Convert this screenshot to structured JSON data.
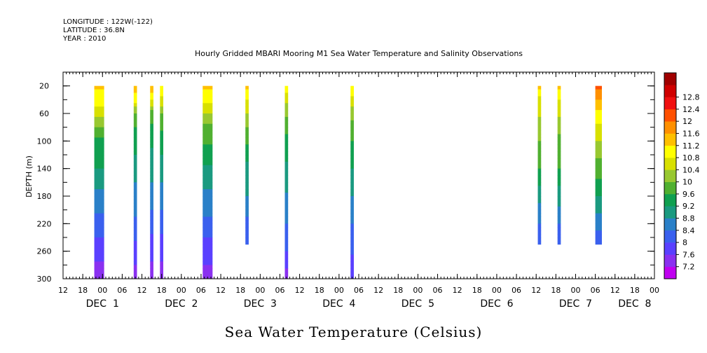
{
  "meta": {
    "longitude": "LONGITUDE : 122W(-122)",
    "latitude": "LATITUDE : 36.8N",
    "year": "YEAR : 2010"
  },
  "chart_data": {
    "type": "heatmap",
    "title": "Hourly Gridded MBARI Mooring M1 Sea Water Temperature and Salinity Observations",
    "bottom_title": "Sea Water Temperature (Celsius)",
    "ylabel": "DEPTH (m)",
    "xlabel": "",
    "x_units": "hours since Nov 30 12:00 (2010)",
    "xlim": [
      0,
      180
    ],
    "ylim": [
      300,
      0
    ],
    "y_ticks": [
      20,
      60,
      100,
      140,
      180,
      220,
      260,
      300
    ],
    "x_hour_ticks": [
      {
        "h": 0,
        "label": "12"
      },
      {
        "h": 6,
        "label": "18"
      },
      {
        "h": 12,
        "label": "00"
      },
      {
        "h": 18,
        "label": "06"
      },
      {
        "h": 24,
        "label": "12"
      },
      {
        "h": 30,
        "label": "18"
      },
      {
        "h": 36,
        "label": "00"
      },
      {
        "h": 42,
        "label": "06"
      },
      {
        "h": 48,
        "label": "12"
      },
      {
        "h": 54,
        "label": "18"
      },
      {
        "h": 60,
        "label": "00"
      },
      {
        "h": 66,
        "label": "06"
      },
      {
        "h": 72,
        "label": "12"
      },
      {
        "h": 78,
        "label": "18"
      },
      {
        "h": 84,
        "label": "00"
      },
      {
        "h": 90,
        "label": "06"
      },
      {
        "h": 96,
        "label": "12"
      },
      {
        "h": 102,
        "label": "18"
      },
      {
        "h": 108,
        "label": "00"
      },
      {
        "h": 114,
        "label": "06"
      },
      {
        "h": 120,
        "label": "12"
      },
      {
        "h": 126,
        "label": "18"
      },
      {
        "h": 132,
        "label": "00"
      },
      {
        "h": 138,
        "label": "06"
      },
      {
        "h": 144,
        "label": "12"
      },
      {
        "h": 150,
        "label": "18"
      },
      {
        "h": 156,
        "label": "00"
      },
      {
        "h": 162,
        "label": "06"
      },
      {
        "h": 168,
        "label": "12"
      },
      {
        "h": 174,
        "label": "18"
      },
      {
        "h": 180,
        "label": "00"
      }
    ],
    "day_labels": [
      {
        "h": 12,
        "label": "DEC  1"
      },
      {
        "h": 36,
        "label": "DEC  2"
      },
      {
        "h": 60,
        "label": "DEC  3"
      },
      {
        "h": 84,
        "label": "DEC  4"
      },
      {
        "h": 108,
        "label": "DEC  5"
      },
      {
        "h": 132,
        "label": "DEC  6"
      },
      {
        "h": 156,
        "label": "DEC  7"
      },
      {
        "h": 174,
        "label": "DEC  8"
      }
    ],
    "colorbar": {
      "levels": [
        7.2,
        7.6,
        8,
        8.4,
        8.8,
        9.2,
        9.6,
        10,
        10.4,
        10.8,
        11.2,
        11.6,
        12,
        12.4,
        12.8
      ],
      "colors": [
        "#c000f0",
        "#8a30f0",
        "#5a40ff",
        "#3a60ee",
        "#2a80c8",
        "#1a9a80",
        "#10a050",
        "#50b030",
        "#98c830",
        "#d8e000",
        "#ffff00",
        "#ffc000",
        "#ff9000",
        "#ff5000",
        "#f01010",
        "#d00000",
        "#a00000"
      ]
    },
    "columns": [
      {
        "start": 9.5,
        "end": 12.5,
        "max_depth": 300,
        "profile": [
          [
            20,
            11.3
          ],
          [
            40,
            11.0
          ],
          [
            60,
            10.6
          ],
          [
            80,
            10.0
          ],
          [
            100,
            9.5
          ],
          [
            140,
            9.2
          ],
          [
            180,
            8.7
          ],
          [
            220,
            8.2
          ],
          [
            260,
            7.8
          ],
          [
            300,
            7.3
          ]
        ]
      },
      {
        "start": 21.5,
        "end": 22.5,
        "max_depth": 300,
        "profile": [
          [
            20,
            11.5
          ],
          [
            40,
            11.0
          ],
          [
            60,
            10.0
          ],
          [
            80,
            9.6
          ],
          [
            120,
            9.2
          ],
          [
            160,
            8.8
          ],
          [
            220,
            8.3
          ],
          [
            260,
            7.8
          ],
          [
            300,
            7.4
          ]
        ]
      },
      {
        "start": 26.5,
        "end": 27.5,
        "max_depth": 300,
        "profile": [
          [
            20,
            11.5
          ],
          [
            40,
            10.8
          ],
          [
            60,
            9.8
          ],
          [
            100,
            9.3
          ],
          [
            160,
            8.8
          ],
          [
            220,
            8.2
          ],
          [
            260,
            7.7
          ],
          [
            300,
            7.4
          ]
        ]
      },
      {
        "start": 29.5,
        "end": 30.5,
        "max_depth": 300,
        "profile": [
          [
            20,
            11.2
          ],
          [
            40,
            10.7
          ],
          [
            60,
            10.0
          ],
          [
            100,
            9.4
          ],
          [
            160,
            8.8
          ],
          [
            220,
            8.2
          ],
          [
            260,
            7.7
          ],
          [
            300,
            7.4
          ]
        ]
      },
      {
        "start": 42.5,
        "end": 45.5,
        "max_depth": 300,
        "profile": [
          [
            20,
            11.3
          ],
          [
            40,
            10.9
          ],
          [
            60,
            10.4
          ],
          [
            80,
            9.9
          ],
          [
            120,
            9.4
          ],
          [
            160,
            8.9
          ],
          [
            200,
            8.5
          ],
          [
            240,
            8.0
          ],
          [
            280,
            7.6
          ],
          [
            300,
            7.3
          ]
        ]
      },
      {
        "start": 55.5,
        "end": 56.5,
        "max_depth": 250,
        "profile": [
          [
            20,
            11.3
          ],
          [
            40,
            10.8
          ],
          [
            80,
            10.0
          ],
          [
            120,
            9.3
          ],
          [
            180,
            8.8
          ],
          [
            220,
            8.3
          ],
          [
            250,
            8.0
          ]
        ]
      },
      {
        "start": 67.5,
        "end": 68.5,
        "max_depth": 300,
        "profile": [
          [
            20,
            11.2
          ],
          [
            40,
            10.5
          ],
          [
            80,
            9.7
          ],
          [
            140,
            9.1
          ],
          [
            200,
            8.6
          ],
          [
            250,
            8.1
          ],
          [
            280,
            7.7
          ],
          [
            300,
            7.4
          ]
        ]
      },
      {
        "start": 87.5,
        "end": 88.5,
        "max_depth": 300,
        "profile": [
          [
            20,
            11.2
          ],
          [
            40,
            10.6
          ],
          [
            80,
            9.8
          ],
          [
            140,
            9.2
          ],
          [
            200,
            8.6
          ],
          [
            250,
            8.1
          ],
          [
            300,
            7.7
          ]
        ]
      },
      {
        "start": 144.5,
        "end": 145.5,
        "max_depth": 250,
        "profile": [
          [
            20,
            11.4
          ],
          [
            40,
            10.7
          ],
          [
            80,
            10.2
          ],
          [
            140,
            9.6
          ],
          [
            180,
            8.9
          ],
          [
            220,
            8.4
          ],
          [
            250,
            8.0
          ]
        ]
      },
      {
        "start": 150.5,
        "end": 151.5,
        "max_depth": 250,
        "profile": [
          [
            20,
            11.4
          ],
          [
            40,
            10.8
          ],
          [
            80,
            10.1
          ],
          [
            140,
            9.6
          ],
          [
            180,
            9.0
          ],
          [
            220,
            8.4
          ],
          [
            250,
            8.0
          ]
        ]
      },
      {
        "start": 162.0,
        "end": 164.0,
        "max_depth": 250,
        "profile": [
          [
            20,
            12.1
          ],
          [
            40,
            11.6
          ],
          [
            60,
            11.0
          ],
          [
            100,
            10.4
          ],
          [
            140,
            9.8
          ],
          [
            180,
            9.2
          ],
          [
            220,
            8.5
          ],
          [
            250,
            8.1
          ]
        ]
      }
    ]
  }
}
